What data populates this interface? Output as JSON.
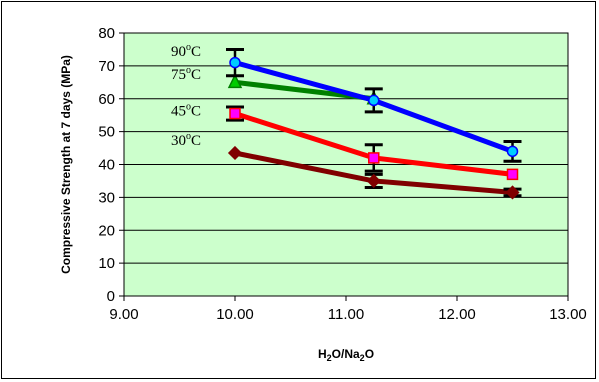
{
  "chart_data": {
    "type": "line",
    "title": "",
    "xlabel_parts": [
      {
        "text": "H",
        "sub": false
      },
      {
        "text": "2",
        "sub": true
      },
      {
        "text": "O/Na",
        "sub": false
      },
      {
        "text": "2",
        "sub": true
      },
      {
        "text": "O",
        "sub": false
      }
    ],
    "ylabel": "Compressive Strength at 7 days (MPa)",
    "xlim": [
      9.0,
      13.0
    ],
    "ylim": [
      0,
      80
    ],
    "x_ticks": [
      9.0,
      10.0,
      11.0,
      12.0,
      13.0
    ],
    "x_tick_labels": [
      "9.00",
      "10.00",
      "11.00",
      "12.00",
      "13.00"
    ],
    "y_ticks": [
      0,
      10,
      20,
      30,
      40,
      50,
      60,
      70,
      80
    ],
    "y_tick_labels": [
      "0",
      "10",
      "20",
      "30",
      "40",
      "50",
      "60",
      "70",
      "80"
    ],
    "grid": "horizontal",
    "plot_background": "#ccffcc",
    "series": [
      {
        "name": "30°C",
        "label_parts": [
          {
            "text": "30",
            "sup": false
          },
          {
            "text": "o",
            "sup": true
          },
          {
            "text": "C",
            "sup": false
          }
        ],
        "color": "#800000",
        "marker": "diamond",
        "marker_color": "#800000",
        "x": [
          10.0,
          11.25,
          12.5
        ],
        "y": [
          43.5,
          35,
          31.5
        ],
        "err": [
          0,
          2,
          1
        ]
      },
      {
        "name": "45°C",
        "label_parts": [
          {
            "text": "45",
            "sup": false
          },
          {
            "text": "o",
            "sup": true
          },
          {
            "text": "C",
            "sup": false
          }
        ],
        "color": "#ff0000",
        "marker": "square",
        "marker_color": "#ff00ff",
        "x": [
          10.0,
          11.25,
          12.5
        ],
        "y": [
          55.5,
          42,
          37
        ],
        "err": [
          2,
          4,
          0
        ]
      },
      {
        "name": "75°C",
        "label_parts": [
          {
            "text": "75",
            "sup": false
          },
          {
            "text": "o",
            "sup": true
          },
          {
            "text": "C",
            "sup": false
          }
        ],
        "color": "#008000",
        "marker": "triangle",
        "marker_color": "#00cc00",
        "x": [
          10.0,
          11.25
        ],
        "y": [
          65,
          60
        ],
        "err": [
          0,
          0
        ]
      },
      {
        "name": "90°C",
        "label_parts": [
          {
            "text": "90",
            "sup": false
          },
          {
            "text": "o",
            "sup": true
          },
          {
            "text": "C",
            "sup": false
          }
        ],
        "color": "#0000ff",
        "marker": "circle",
        "marker_color": "#00ccff",
        "x": [
          10.0,
          11.25,
          12.5
        ],
        "y": [
          71,
          59.5,
          44
        ],
        "err": [
          4,
          3.5,
          3
        ]
      }
    ]
  }
}
